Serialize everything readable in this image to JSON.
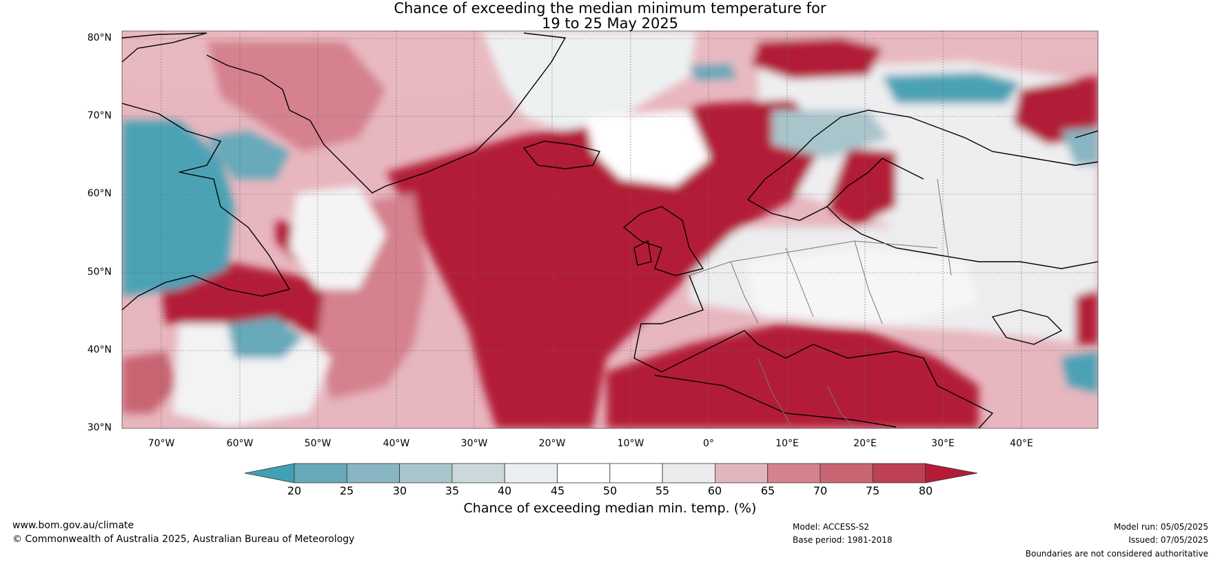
{
  "title": {
    "line1": "Chance of exceeding the median minimum temperature for",
    "line2": "19 to 25 May 2025"
  },
  "axes": {
    "lat_labels": [
      "80°N",
      "70°N",
      "60°N",
      "50°N",
      "40°N",
      "30°N"
    ],
    "lon_labels": [
      "70°W",
      "60°W",
      "50°W",
      "40°W",
      "30°W",
      "20°W",
      "10°W",
      "0°",
      "10°E",
      "20°E",
      "30°E",
      "40°E"
    ]
  },
  "legend": {
    "title": "Chance of exceeding median min. temp. (%)",
    "ticks": [
      "20",
      "25",
      "30",
      "35",
      "40",
      "45",
      "50",
      "55",
      "60",
      "65",
      "70",
      "75",
      "80"
    ],
    "colors": [
      "#41a0b4",
      "#67a9ba",
      "#88b6c2",
      "#a9c5cc",
      "#cbd9dc",
      "#eaf0f2",
      "#ffffff",
      "#ffffff",
      "#ececee",
      "#e2b6bd",
      "#d5818e",
      "#c86572",
      "#bd4055",
      "#b31b38"
    ]
  },
  "footer": {
    "website": "www.bom.gov.au/climate",
    "copyright": "© Commonwealth of Australia 2025, Australian Bureau of Meteorology",
    "model": "Model: ACCESS-S2",
    "base_period": "Base period: 1981-2018",
    "model_run": "Model run: 05/05/2025",
    "issued": "Issued: 07/05/2025",
    "disclaimer": "Boundaries are not considered authoritative"
  }
}
